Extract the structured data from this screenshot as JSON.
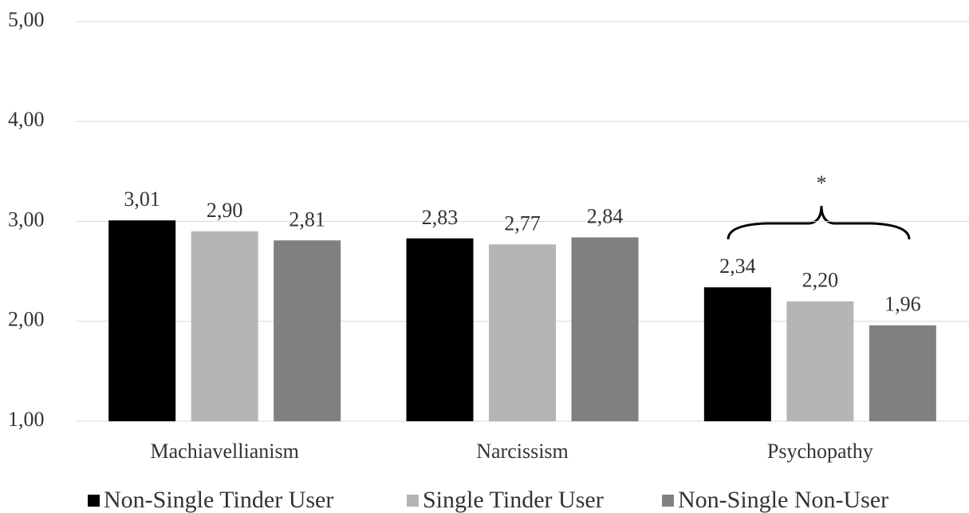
{
  "chart_data": {
    "type": "bar",
    "categories": [
      "Machiavellianism",
      "Narcissism",
      "Psychopathy"
    ],
    "series": [
      {
        "name": "Non-Single Tinder User",
        "color": "#000000",
        "values": [
          3.01,
          2.83,
          2.34
        ],
        "value_labels": [
          "3,01",
          "2,83",
          "2,34"
        ]
      },
      {
        "name": "Single Tinder User",
        "color": "#b5b5b5",
        "values": [
          2.9,
          2.77,
          2.2
        ],
        "value_labels": [
          "2,90",
          "2,77",
          "2,20"
        ]
      },
      {
        "name": "Non-Single Non-User",
        "color": "#808080",
        "values": [
          2.81,
          2.84,
          1.96
        ],
        "value_labels": [
          "2,81",
          "2,84",
          "1,96"
        ]
      }
    ],
    "ylim": [
      1,
      5
    ],
    "yticks": [
      {
        "value": 1,
        "label": "1,00"
      },
      {
        "value": 2,
        "label": "2,00"
      },
      {
        "value": 3,
        "label": "3,00"
      },
      {
        "value": 4,
        "label": "4,00"
      },
      {
        "value": 5,
        "label": "5,00"
      }
    ],
    "grid": true,
    "legend": "bottom",
    "annotation": "*"
  }
}
